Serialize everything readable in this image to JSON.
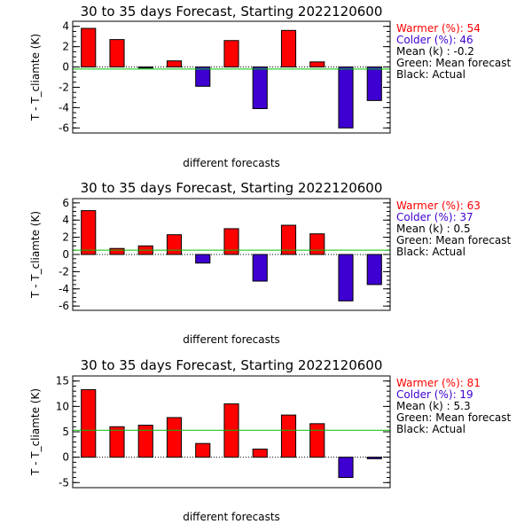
{
  "chart_data": [
    {
      "type": "bar",
      "title": "30 to 35 days Forecast, Starting 2022120600",
      "xlabel": "different forecasts",
      "ylabel": "T - T_cliamte (K)",
      "ylim": [
        -6.5,
        4.5
      ],
      "yticks": [
        -6,
        -4,
        -2,
        0,
        2,
        4
      ],
      "values": [
        3.8,
        2.7,
        -0.1,
        0.6,
        -1.9,
        2.6,
        -4.1,
        3.6,
        0.5,
        -6.0,
        -3.3
      ],
      "mean": -0.2,
      "legend": {
        "warmer_label": "Warmer (%): 54",
        "colder_label": "Colder (%): 46",
        "mean_label": "Mean (k) : -0.2",
        "green_label": "Green: Mean forecast",
        "black_label": "Black: Actual"
      }
    },
    {
      "type": "bar",
      "title": "30 to 35 days Forecast, Starting 2022120600",
      "xlabel": "different forecasts",
      "ylabel": "T - T_cliamte (K)",
      "ylim": [
        -6.5,
        6.5
      ],
      "yticks": [
        -6,
        -4,
        -2,
        0,
        2,
        4,
        6
      ],
      "values": [
        5.1,
        0.7,
        1.0,
        2.3,
        -1.0,
        3.0,
        -3.1,
        3.4,
        2.4,
        -5.4,
        -3.5
      ],
      "mean": 0.5,
      "legend": {
        "warmer_label": "Warmer (%): 63",
        "colder_label": "Colder (%): 37",
        "mean_label": "Mean (k) :  0.5",
        "green_label": "Green: Mean forecast",
        "black_label": "Black: Actual"
      }
    },
    {
      "type": "bar",
      "title": "30 to 35 days Forecast, Starting 2022120600",
      "xlabel": "different forecasts",
      "ylabel": "T - T_cliamte (K)",
      "ylim": [
        -6,
        16
      ],
      "yticks": [
        -5,
        0,
        5,
        10,
        15
      ],
      "values": [
        13.3,
        6.0,
        6.3,
        7.8,
        2.7,
        10.5,
        1.6,
        8.3,
        6.6,
        -4.0,
        -0.3
      ],
      "mean": 5.3,
      "legend": {
        "warmer_label": "Warmer (%): 81",
        "colder_label": "Colder (%): 19",
        "mean_label": "Mean (k) :   5.3",
        "green_label": "Green: Mean forecast",
        "black_label": "Black: Actual"
      }
    }
  ],
  "colors": {
    "warm_bar": "#ff0000",
    "cold_bar": "#3d00d0",
    "mean_line": "#00c000",
    "warmer_text": "#ff0000",
    "colder_text": "#3d00d0",
    "text": "#000000"
  }
}
